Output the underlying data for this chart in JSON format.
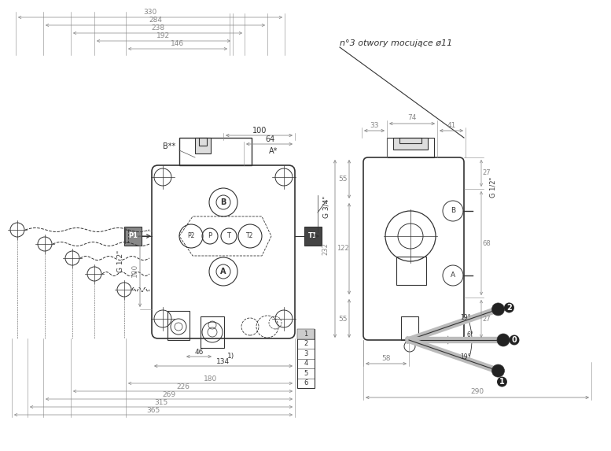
{
  "bg_color": "#ffffff",
  "line_color": "#333333",
  "dim_color": "#888888",
  "annotation_text": "n°3 otwory mocujące ø11",
  "ports_front": [
    "P1",
    "P2",
    "P",
    "T",
    "T2",
    "T1"
  ],
  "ports_side": [
    "B",
    "A"
  ],
  "labels_box": [
    "1",
    "2",
    "3",
    "4",
    "5",
    "6"
  ],
  "angles": [
    19,
    6,
    19
  ],
  "dim_top": [
    "330",
    "284",
    "238",
    "192",
    "146"
  ],
  "dim_bottom": [
    "180",
    "226",
    "269",
    "315",
    "365"
  ],
  "dim_right_top": [
    "74",
    "33",
    "41"
  ],
  "dim_right_vert_left": [
    "55",
    "232",
    "122",
    "55"
  ],
  "dim_right_vert_right": [
    "27",
    "68",
    "27"
  ],
  "dim_right_bot": [
    "58",
    "290"
  ]
}
